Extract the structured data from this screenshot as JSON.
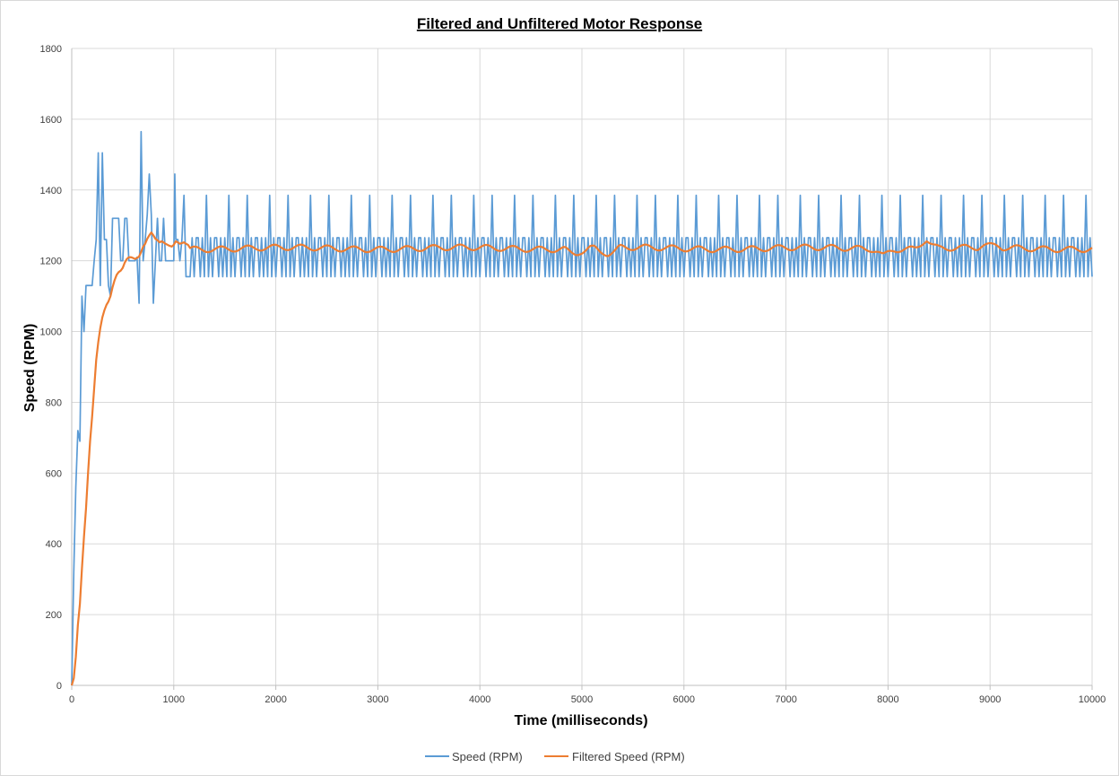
{
  "chart_data": {
    "type": "line",
    "title": "Filtered and  Unfiltered Motor  Response",
    "xlabel": "Time (milliseconds)",
    "ylabel": "Speed (RPM)",
    "xlim": [
      0,
      10000
    ],
    "ylim": [
      0,
      1800
    ],
    "x_ticks": [
      0,
      1000,
      2000,
      3000,
      4000,
      5000,
      6000,
      7000,
      8000,
      9000,
      10000
    ],
    "y_ticks": [
      0,
      200,
      400,
      600,
      800,
      1000,
      1200,
      1400,
      1600,
      1800
    ],
    "x_tick_labels": [
      "0",
      "1000",
      "2000",
      "3000",
      "4000",
      "5000",
      "6000",
      "7000",
      "8000",
      "9000",
      "10000"
    ],
    "y_tick_labels": [
      "0",
      "200",
      "400",
      "600",
      "800",
      "1000",
      "1200",
      "1400",
      "1600",
      "1800"
    ],
    "grid": true,
    "legend_position": "bottom",
    "series": [
      {
        "name": "Speed (RPM)",
        "color": "#5b9bd5",
        "points": [
          [
            0,
            0
          ],
          [
            20,
            320
          ],
          [
            40,
            560
          ],
          [
            60,
            720
          ],
          [
            80,
            690
          ],
          [
            100,
            1100
          ],
          [
            120,
            1000
          ],
          [
            140,
            1130
          ],
          [
            160,
            1130
          ],
          [
            180,
            1130
          ],
          [
            200,
            1130
          ],
          [
            220,
            1200
          ],
          [
            240,
            1260
          ],
          [
            260,
            1505
          ],
          [
            280,
            1130
          ],
          [
            300,
            1505
          ],
          [
            320,
            1260
          ],
          [
            340,
            1260
          ],
          [
            360,
            1130
          ],
          [
            380,
            1100
          ],
          [
            400,
            1320
          ],
          [
            420,
            1320
          ],
          [
            440,
            1320
          ],
          [
            460,
            1320
          ],
          [
            480,
            1200
          ],
          [
            500,
            1200
          ],
          [
            520,
            1320
          ],
          [
            540,
            1320
          ],
          [
            560,
            1200
          ],
          [
            580,
            1200
          ],
          [
            600,
            1200
          ],
          [
            620,
            1200
          ],
          [
            640,
            1210
          ],
          [
            660,
            1080
          ],
          [
            680,
            1565
          ],
          [
            700,
            1200
          ],
          [
            720,
            1260
          ],
          [
            740,
            1330
          ],
          [
            760,
            1445
          ],
          [
            780,
            1330
          ],
          [
            800,
            1080
          ],
          [
            820,
            1200
          ],
          [
            840,
            1320
          ],
          [
            860,
            1200
          ],
          [
            880,
            1200
          ],
          [
            900,
            1320
          ],
          [
            920,
            1200
          ],
          [
            940,
            1200
          ],
          [
            960,
            1200
          ],
          [
            980,
            1200
          ],
          [
            1000,
            1200
          ],
          [
            1010,
            1445
          ],
          [
            1020,
            1260
          ],
          [
            1040,
            1260
          ],
          [
            1060,
            1200
          ],
          [
            1080,
            1260
          ],
          [
            1100,
            1385
          ],
          [
            1120,
            1155
          ],
          [
            1140,
            1155
          ]
        ],
        "steady_state": {
          "x_start": 1140,
          "x_end": 10000,
          "step_ms": 20,
          "pattern": [
            1155,
            1265,
            1155,
            1265,
            1265,
            1155,
            1265,
            1155,
            1385,
            1155,
            1265,
            1155,
            1265,
            1265,
            1155,
            1265,
            1155,
            1265,
            1155,
            1385
          ],
          "spikes": [
            [
              8390,
              1500
            ],
            [
              8410,
              1265
            ]
          ]
        }
      },
      {
        "name": "Filtered Speed (RPM)",
        "color": "#ed7d31",
        "points": [
          [
            0,
            0
          ],
          [
            20,
            20
          ],
          [
            40,
            80
          ],
          [
            60,
            170
          ],
          [
            80,
            230
          ],
          [
            100,
            330
          ],
          [
            120,
            420
          ],
          [
            140,
            500
          ],
          [
            160,
            600
          ],
          [
            180,
            690
          ],
          [
            200,
            760
          ],
          [
            220,
            840
          ],
          [
            240,
            920
          ],
          [
            260,
            970
          ],
          [
            280,
            1010
          ],
          [
            300,
            1040
          ],
          [
            320,
            1060
          ],
          [
            340,
            1075
          ],
          [
            360,
            1085
          ],
          [
            380,
            1100
          ],
          [
            400,
            1125
          ],
          [
            420,
            1145
          ],
          [
            440,
            1160
          ],
          [
            460,
            1168
          ],
          [
            480,
            1172
          ],
          [
            500,
            1180
          ],
          [
            520,
            1195
          ],
          [
            540,
            1205
          ],
          [
            560,
            1210
          ],
          [
            580,
            1210
          ],
          [
            600,
            1208
          ],
          [
            620,
            1205
          ],
          [
            640,
            1208
          ],
          [
            660,
            1212
          ],
          [
            680,
            1225
          ],
          [
            700,
            1240
          ],
          [
            720,
            1248
          ],
          [
            740,
            1262
          ],
          [
            760,
            1272
          ],
          [
            780,
            1280
          ],
          [
            800,
            1272
          ],
          [
            820,
            1262
          ],
          [
            840,
            1258
          ],
          [
            860,
            1252
          ],
          [
            880,
            1255
          ],
          [
            900,
            1252
          ],
          [
            920,
            1248
          ],
          [
            940,
            1245
          ],
          [
            960,
            1242
          ],
          [
            980,
            1240
          ],
          [
            1000,
            1245
          ],
          [
            1020,
            1255
          ],
          [
            1040,
            1252
          ],
          [
            1060,
            1248
          ],
          [
            1080,
            1250
          ],
          [
            1100,
            1252
          ],
          [
            1120,
            1248
          ],
          [
            1140,
            1245
          ]
        ],
        "steady_state": {
          "x_start": 1140,
          "x_end": 10000,
          "step_ms": 20,
          "center": 1235,
          "amplitude": 8,
          "period_ms": 260,
          "dips": [
            [
              4950,
              1215
            ],
            [
              5250,
              1212
            ],
            [
              7950,
              1220
            ],
            [
              8380,
              1255
            ],
            [
              9000,
              1250
            ]
          ]
        }
      }
    ]
  }
}
